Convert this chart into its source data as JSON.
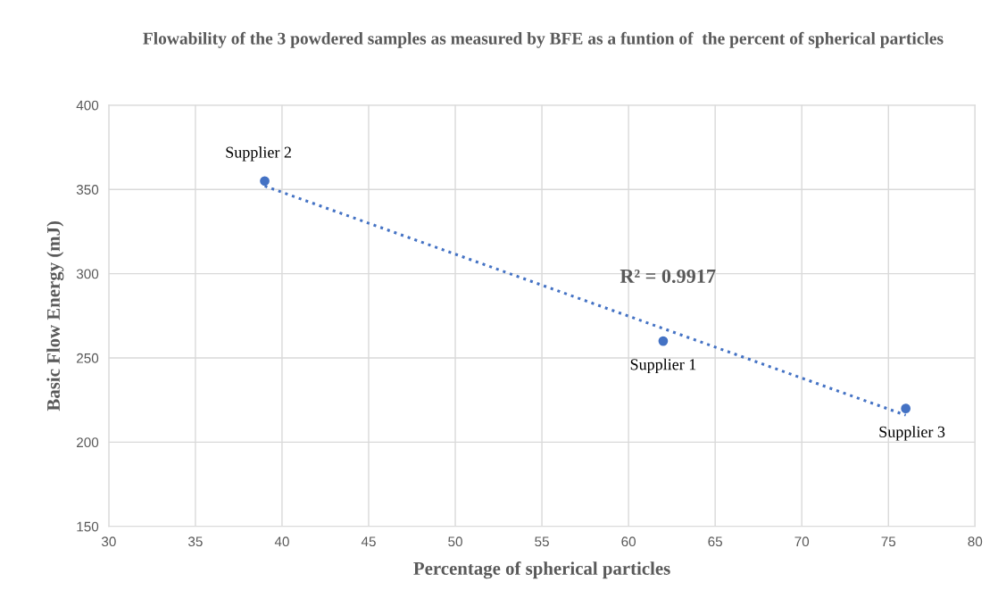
{
  "chart_data": {
    "type": "scatter",
    "title": "Flowability of the 3 powdered samples as measured by BFE as a funtion of  the percent of spherical particles",
    "xlabel": "Percentage of spherical particles",
    "ylabel": "Basic Flow Energy (mJ)",
    "series": [
      {
        "type": "scatter",
        "color": "#4472c4",
        "marker": "circle",
        "x": [
          62,
          39,
          76
        ],
        "values": [
          260,
          355,
          220
        ]
      },
      {
        "type": "line",
        "color": "#4472c4",
        "line_style": "dotted",
        "x": [
          39,
          76
        ],
        "values": [
          352,
          216
        ]
      }
    ],
    "annotations": [
      {
        "text": "Supplier 1",
        "x": 62,
        "y": 260
      },
      {
        "text": "Supplier 2",
        "x": 39,
        "y": 355
      },
      {
        "text": "Supplier 3",
        "x": 76,
        "y": 220
      },
      "R² = 0.9917"
    ],
    "xlim": [
      30,
      80
    ],
    "xticks": [
      30,
      35,
      40,
      45,
      50,
      55,
      60,
      65,
      70,
      75,
      80
    ],
    "ylim": [
      150,
      400
    ],
    "yticks": [
      150,
      200,
      250,
      300,
      350,
      400
    ],
    "grid": true
  }
}
